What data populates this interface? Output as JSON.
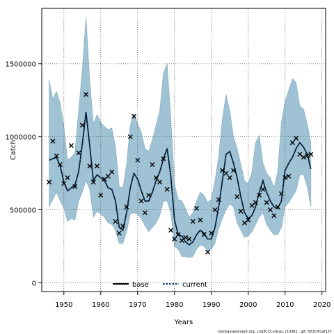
{
  "chart_data": {
    "type": "line",
    "title": "",
    "xlabel": "Years",
    "ylabel": "Catch",
    "xlim": [
      1944,
      2021
    ],
    "ylim": [
      -60000,
      1880000
    ],
    "x_ticks": [
      1950,
      1960,
      1970,
      1980,
      1990,
      2000,
      2010,
      2020
    ],
    "y_ticks": [
      0,
      500000,
      1000000,
      1500000
    ],
    "grid": true,
    "legend_position": "bottom",
    "colors": {
      "band": "#9fc3d5",
      "band_edge": "#7fa8bd",
      "base_line": "#000000",
      "current_line": "#08306b",
      "points": "#000000",
      "grid": "#555555"
    },
    "years": [
      1946,
      1947,
      1948,
      1949,
      1950,
      1951,
      1952,
      1953,
      1954,
      1955,
      1956,
      1957,
      1958,
      1959,
      1960,
      1961,
      1962,
      1963,
      1964,
      1965,
      1966,
      1967,
      1968,
      1969,
      1970,
      1971,
      1972,
      1973,
      1974,
      1975,
      1976,
      1977,
      1978,
      1979,
      1980,
      1981,
      1982,
      1983,
      1984,
      1985,
      1986,
      1987,
      1988,
      1989,
      1990,
      1991,
      1992,
      1993,
      1994,
      1995,
      1996,
      1997,
      1998,
      1999,
      2000,
      2001,
      2002,
      2003,
      2004,
      2005,
      2006,
      2007,
      2008,
      2009,
      2010,
      2011,
      2012,
      2013,
      2014,
      2015,
      2016,
      2017
    ],
    "observed": [
      690000,
      970000,
      870000,
      810000,
      680000,
      720000,
      940000,
      660000,
      890000,
      1080000,
      1290000,
      800000,
      690000,
      800000,
      600000,
      710000,
      730000,
      760000,
      420000,
      340000,
      390000,
      520000,
      1000000,
      1140000,
      840000,
      560000,
      480000,
      600000,
      810000,
      720000,
      690000,
      850000,
      640000,
      360000,
      300000,
      330000,
      290000,
      310000,
      300000,
      420000,
      510000,
      430000,
      330000,
      210000,
      340000,
      500000,
      570000,
      770000,
      750000,
      720000,
      770000,
      590000,
      490000,
      410000,
      430000,
      530000,
      550000,
      600000,
      640000,
      550000,
      500000,
      460000,
      520000,
      610000,
      720000,
      730000,
      960000,
      990000,
      880000,
      860000,
      870000,
      880000
    ],
    "series": [
      {
        "name": "base",
        "values": [
          840000,
          850000,
          860000,
          800000,
          690000,
          630000,
          650000,
          670000,
          760000,
          950000,
          1170000,
          940000,
          700000,
          740000,
          720000,
          700000,
          650000,
          640000,
          560000,
          380000,
          360000,
          480000,
          650000,
          750000,
          710000,
          630000,
          560000,
          560000,
          620000,
          700000,
          760000,
          850000,
          920000,
          730000,
          430000,
          330000,
          320000,
          280000,
          260000,
          280000,
          330000,
          360000,
          340000,
          300000,
          300000,
          380000,
          520000,
          700000,
          880000,
          900000,
          820000,
          720000,
          590000,
          480000,
          440000,
          460000,
          520000,
          620000,
          700000,
          620000,
          560000,
          520000,
          510000,
          560000,
          770000,
          820000,
          860000,
          920000,
          960000,
          930000,
          880000,
          780000
        ]
      },
      {
        "name": "current",
        "values": [
          840000,
          850000,
          860000,
          800000,
          690000,
          630000,
          650000,
          670000,
          760000,
          950000,
          1170000,
          940000,
          700000,
          740000,
          720000,
          700000,
          650000,
          640000,
          560000,
          380000,
          360000,
          480000,
          650000,
          750000,
          710000,
          630000,
          560000,
          560000,
          620000,
          700000,
          760000,
          850000,
          920000,
          730000,
          430000,
          330000,
          320000,
          280000,
          260000,
          280000,
          330000,
          360000,
          340000,
          300000,
          300000,
          380000,
          520000,
          700000,
          880000,
          900000,
          820000,
          720000,
          590000,
          480000,
          440000,
          460000,
          520000,
          620000,
          700000,
          620000,
          560000,
          520000,
          510000,
          560000,
          770000,
          820000,
          860000,
          920000,
          960000,
          930000,
          880000,
          780000
        ]
      }
    ],
    "band_upper": [
      1390000,
      1260000,
      1310000,
      1230000,
      1070000,
      840000,
      860000,
      890000,
      1180000,
      1460000,
      1820000,
      1390000,
      1090000,
      1150000,
      1100000,
      1070000,
      1050000,
      1060000,
      930000,
      660000,
      650000,
      810000,
      1080000,
      1160000,
      1090000,
      1030000,
      920000,
      900000,
      980000,
      1080000,
      1180000,
      1440000,
      1500000,
      1130000,
      680000,
      570000,
      560000,
      510000,
      450000,
      480000,
      560000,
      620000,
      600000,
      550000,
      570000,
      700000,
      870000,
      1120000,
      1290000,
      1180000,
      1000000,
      920000,
      810000,
      700000,
      680000,
      760000,
      960000,
      1010000,
      820000,
      750000,
      720000,
      650000,
      760000,
      1100000,
      1240000,
      1320000,
      1400000,
      1370000,
      1210000,
      1190000,
      1090000,
      960000
    ],
    "band_lower": [
      520000,
      570000,
      620000,
      560000,
      510000,
      420000,
      440000,
      430000,
      560000,
      620000,
      700000,
      640000,
      450000,
      490000,
      470000,
      450000,
      410000,
      400000,
      360000,
      270000,
      270000,
      350000,
      470000,
      480000,
      470000,
      440000,
      390000,
      350000,
      380000,
      410000,
      460000,
      560000,
      560000,
      480000,
      250000,
      230000,
      180000,
      180000,
      170000,
      180000,
      230000,
      260000,
      250000,
      220000,
      230000,
      270000,
      370000,
      440000,
      500000,
      540000,
      520000,
      410000,
      360000,
      310000,
      320000,
      350000,
      400000,
      450000,
      480000,
      400000,
      360000,
      330000,
      330000,
      380000,
      520000,
      550000,
      590000,
      630000,
      740000,
      740000,
      660000,
      520000
    ],
    "legend": [
      "base",
      "current"
    ]
  },
  "footer": {
    "credit": "stockassessment.org, cod3CCCodvas, r10361 , git: 503cf91af157"
  }
}
